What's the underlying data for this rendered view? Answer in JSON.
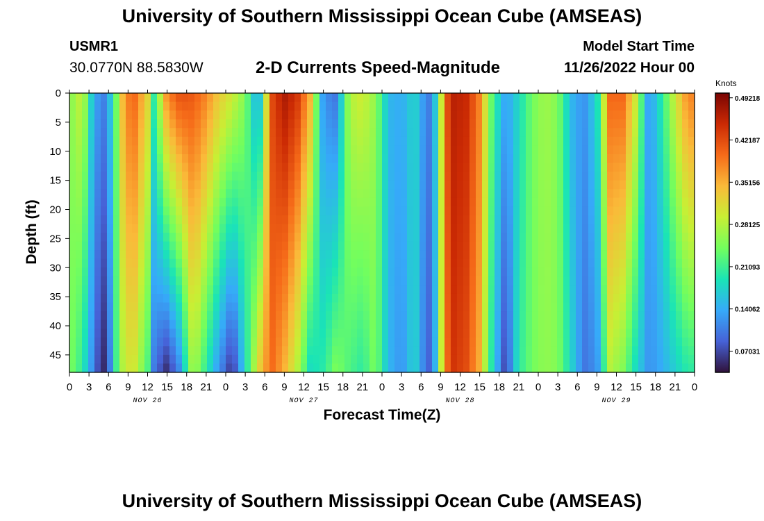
{
  "header": {
    "title": "University of Southern Mississippi Ocean Cube (AMSEAS)",
    "station": "USMR1",
    "coords": "30.0770N  88.5830W",
    "subtitle": "2-D Currents Speed-Magnitude",
    "model_start_label": "Model Start Time",
    "model_start_date": "11/26/2022 Hour 00"
  },
  "footer": {
    "title_repeat": "University of Southern Mississippi Ocean Cube (AMSEAS)"
  },
  "chart_data": {
    "type": "heatmap",
    "title": "2-D Currents Speed-Magnitude",
    "xlabel": "Forecast Time(Z)",
    "ylabel": "Depth (ft)",
    "x_tick_labels": [
      "0",
      "3",
      "6",
      "9",
      "12",
      "15",
      "18",
      "21",
      "0",
      "3",
      "6",
      "9",
      "12",
      "15",
      "18",
      "21",
      "0",
      "3",
      "6",
      "9",
      "12",
      "15",
      "18",
      "21",
      "0",
      "3",
      "6",
      "9",
      "12",
      "15",
      "18",
      "21",
      "0"
    ],
    "x_range_hours": [
      0,
      96
    ],
    "day_labels": [
      {
        "label": "NOV 26",
        "hour": 12
      },
      {
        "label": "NOV 27",
        "hour": 36
      },
      {
        "label": "NOV 28",
        "hour": 60
      },
      {
        "label": "NOV 29",
        "hour": 84
      }
    ],
    "y_ticks": [
      0,
      5,
      10,
      15,
      20,
      25,
      30,
      35,
      40,
      45
    ],
    "y_range": [
      0,
      48
    ],
    "y_inverted": true,
    "colorbar": {
      "label": "Knots",
      "range": [
        0.035,
        0.5
      ],
      "ticks": [
        0.49218,
        0.42187,
        0.35156,
        0.28125,
        0.21093,
        0.14062,
        0.07031
      ],
      "tick_labels": [
        "0.49218",
        "0.42187",
        "0.35156",
        "0.28125",
        "0.21093",
        "0.14062",
        "0.07031"
      ],
      "colormap": [
        "#30123b",
        "#4662d7",
        "#36aaf9",
        "#1ae4b6",
        "#72fe5e",
        "#c8ef34",
        "#faba39",
        "#f66b19",
        "#cb2a04",
        "#7a0403"
      ]
    },
    "speed_profile_hours": [
      0,
      2,
      3.5,
      5,
      6,
      7,
      8.5,
      10,
      12,
      13,
      15,
      17,
      19,
      21,
      23,
      25,
      27,
      29,
      31,
      33,
      35,
      37,
      39,
      41,
      43,
      45,
      47,
      49,
      51,
      53,
      55,
      56,
      57,
      58,
      59,
      61,
      63,
      65,
      67,
      69,
      71,
      73,
      75,
      77,
      79,
      81,
      83,
      85,
      87,
      89,
      91,
      93,
      95,
      96
    ],
    "speed_surface_knots": [
      0.25,
      0.3,
      0.16,
      0.1,
      0.14,
      0.22,
      0.38,
      0.4,
      0.32,
      0.2,
      0.38,
      0.42,
      0.41,
      0.38,
      0.33,
      0.3,
      0.25,
      0.12,
      0.42,
      0.47,
      0.44,
      0.35,
      0.12,
      0.1,
      0.28,
      0.3,
      0.26,
      0.15,
      0.14,
      0.18,
      0.1,
      0.14,
      0.28,
      0.42,
      0.46,
      0.45,
      0.38,
      0.22,
      0.13,
      0.18,
      0.24,
      0.27,
      0.25,
      0.15,
      0.12,
      0.18,
      0.4,
      0.4,
      0.3,
      0.12,
      0.2,
      0.3,
      0.38,
      0.38
    ],
    "speed_bottom_knots": [
      0.25,
      0.2,
      0.12,
      0.04,
      0.08,
      0.2,
      0.3,
      0.3,
      0.22,
      0.1,
      0.05,
      0.12,
      0.28,
      0.2,
      0.12,
      0.05,
      0.18,
      0.32,
      0.4,
      0.35,
      0.28,
      0.18,
      0.2,
      0.25,
      0.22,
      0.2,
      0.25,
      0.15,
      0.12,
      0.18,
      0.08,
      0.12,
      0.28,
      0.4,
      0.44,
      0.42,
      0.35,
      0.18,
      0.06,
      0.2,
      0.24,
      0.26,
      0.25,
      0.18,
      0.1,
      0.12,
      0.28,
      0.25,
      0.18,
      0.12,
      0.14,
      0.17,
      0.2,
      0.2
    ]
  }
}
